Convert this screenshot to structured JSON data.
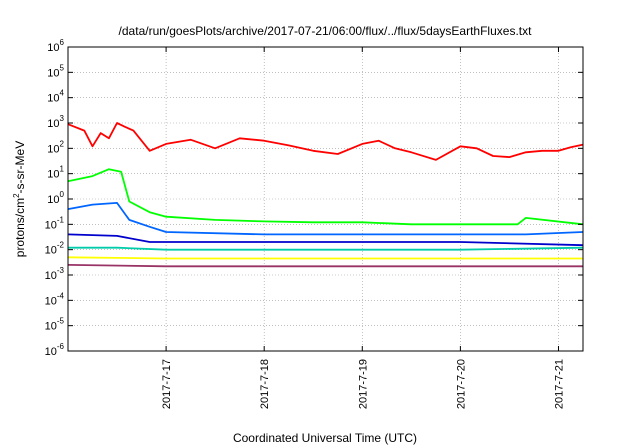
{
  "chart_data": {
    "type": "line",
    "title": "/data/run/goesPlots/archive/2017-07-21/06:00/flux/../flux/5daysEarthFluxes.txt",
    "xlabel": "Coordinated Universal Time (UTC)",
    "ylabel_parts": [
      "protons/cm",
      "2",
      "-s-sr-MeV"
    ],
    "yscale": "log",
    "ylim": [
      1e-06,
      1000000.0
    ],
    "y_ticks": [
      {
        "base": "10",
        "exp": "-6",
        "value": 1e-06
      },
      {
        "base": "10",
        "exp": "-5",
        "value": 1e-05
      },
      {
        "base": "10",
        "exp": "-4",
        "value": 0.0001
      },
      {
        "base": "10",
        "exp": "-3",
        "value": 0.001
      },
      {
        "base": "10",
        "exp": "-2",
        "value": 0.01
      },
      {
        "base": "10",
        "exp": "-1",
        "value": 0.1
      },
      {
        "base": "10",
        "exp": "0",
        "value": 1
      },
      {
        "base": "10",
        "exp": "1",
        "value": 10
      },
      {
        "base": "10",
        "exp": "2",
        "value": 100
      },
      {
        "base": "10",
        "exp": "3",
        "value": 1000
      },
      {
        "base": "10",
        "exp": "4",
        "value": 10000
      },
      {
        "base": "10",
        "exp": "5",
        "value": 100000
      },
      {
        "base": "10",
        "exp": "6",
        "value": 1000000
      }
    ],
    "xlim": [
      "2017-07-16 00:00",
      "2017-07-21 06:00"
    ],
    "x_ticks": [
      {
        "label": "2017-7-17",
        "value": "2017-07-17 00:00"
      },
      {
        "label": "2017-7-18",
        "value": "2017-07-18 00:00"
      },
      {
        "label": "2017-7-19",
        "value": "2017-07-19 00:00"
      },
      {
        "label": "2017-7-20",
        "value": "2017-07-20 00:00"
      },
      {
        "label": "2017-7-21",
        "value": "2017-07-21 00:00"
      }
    ],
    "grid": true,
    "series": [
      {
        "color": "#ff0000",
        "points": [
          [
            "2017-07-16 00:00",
            900
          ],
          [
            "2017-07-16 04:00",
            500
          ],
          [
            "2017-07-16 06:00",
            120
          ],
          [
            "2017-07-16 08:00",
            400
          ],
          [
            "2017-07-16 10:00",
            250
          ],
          [
            "2017-07-16 12:00",
            1000
          ],
          [
            "2017-07-16 14:00",
            700
          ],
          [
            "2017-07-16 16:00",
            500
          ],
          [
            "2017-07-16 20:00",
            80
          ],
          [
            "2017-07-17 00:00",
            150
          ],
          [
            "2017-07-17 06:00",
            220
          ],
          [
            "2017-07-17 12:00",
            100
          ],
          [
            "2017-07-17 18:00",
            250
          ],
          [
            "2017-07-18 00:00",
            200
          ],
          [
            "2017-07-18 06:00",
            130
          ],
          [
            "2017-07-18 12:00",
            80
          ],
          [
            "2017-07-18 18:00",
            60
          ],
          [
            "2017-07-19 00:00",
            150
          ],
          [
            "2017-07-19 04:00",
            200
          ],
          [
            "2017-07-19 08:00",
            100
          ],
          [
            "2017-07-19 12:00",
            70
          ],
          [
            "2017-07-19 18:00",
            35
          ],
          [
            "2017-07-20 00:00",
            120
          ],
          [
            "2017-07-20 04:00",
            100
          ],
          [
            "2017-07-20 08:00",
            50
          ],
          [
            "2017-07-20 12:00",
            45
          ],
          [
            "2017-07-20 16:00",
            70
          ],
          [
            "2017-07-20 20:00",
            80
          ],
          [
            "2017-07-21 00:00",
            80
          ],
          [
            "2017-07-21 03:00",
            110
          ],
          [
            "2017-07-21 06:00",
            140
          ]
        ]
      },
      {
        "color": "#00ff00",
        "points": [
          [
            "2017-07-16 00:00",
            5
          ],
          [
            "2017-07-16 06:00",
            8
          ],
          [
            "2017-07-16 10:00",
            15
          ],
          [
            "2017-07-16 13:00",
            12
          ],
          [
            "2017-07-16 15:00",
            0.8
          ],
          [
            "2017-07-16 20:00",
            0.3
          ],
          [
            "2017-07-17 00:00",
            0.2
          ],
          [
            "2017-07-17 12:00",
            0.15
          ],
          [
            "2017-07-18 00:00",
            0.13
          ],
          [
            "2017-07-18 12:00",
            0.12
          ],
          [
            "2017-07-19 00:00",
            0.12
          ],
          [
            "2017-07-19 12:00",
            0.1
          ],
          [
            "2017-07-20 00:00",
            0.1
          ],
          [
            "2017-07-20 14:00",
            0.1
          ],
          [
            "2017-07-20 16:00",
            0.18
          ],
          [
            "2017-07-21 06:00",
            0.1
          ]
        ]
      },
      {
        "color": "#0066ff",
        "points": [
          [
            "2017-07-16 00:00",
            0.4
          ],
          [
            "2017-07-16 06:00",
            0.6
          ],
          [
            "2017-07-16 12:00",
            0.7
          ],
          [
            "2017-07-16 15:00",
            0.15
          ],
          [
            "2017-07-16 20:00",
            0.08
          ],
          [
            "2017-07-17 00:00",
            0.05
          ],
          [
            "2017-07-18 00:00",
            0.04
          ],
          [
            "2017-07-19 00:00",
            0.04
          ],
          [
            "2017-07-20 00:00",
            0.04
          ],
          [
            "2017-07-20 16:00",
            0.04
          ],
          [
            "2017-07-21 06:00",
            0.05
          ]
        ]
      },
      {
        "color": "#00ccaa",
        "points": [
          [
            "2017-07-16 00:00",
            0.012
          ],
          [
            "2017-07-16 12:00",
            0.012
          ],
          [
            "2017-07-17 00:00",
            0.01
          ],
          [
            "2017-07-18 00:00",
            0.01
          ],
          [
            "2017-07-19 00:00",
            0.01
          ],
          [
            "2017-07-20 00:00",
            0.01
          ],
          [
            "2017-07-21 06:00",
            0.012
          ]
        ]
      },
      {
        "color": "#0000cc",
        "points": [
          [
            "2017-07-16 00:00",
            0.04
          ],
          [
            "2017-07-16 12:00",
            0.035
          ],
          [
            "2017-07-16 20:00",
            0.02
          ],
          [
            "2017-07-17 00:00",
            0.02
          ],
          [
            "2017-07-18 00:00",
            0.02
          ],
          [
            "2017-07-19 00:00",
            0.02
          ],
          [
            "2017-07-20 00:00",
            0.02
          ],
          [
            "2017-07-21 06:00",
            0.015
          ]
        ]
      },
      {
        "color": "#ffff00",
        "points": [
          [
            "2017-07-16 00:00",
            0.005
          ],
          [
            "2017-07-17 00:00",
            0.0045
          ],
          [
            "2017-07-18 00:00",
            0.0045
          ],
          [
            "2017-07-19 00:00",
            0.0045
          ],
          [
            "2017-07-20 00:00",
            0.0045
          ],
          [
            "2017-07-21 06:00",
            0.0045
          ]
        ]
      },
      {
        "color": "#993366",
        "points": [
          [
            "2017-07-16 00:00",
            0.0025
          ],
          [
            "2017-07-17 00:00",
            0.0022
          ],
          [
            "2017-07-18 00:00",
            0.0022
          ],
          [
            "2017-07-19 00:00",
            0.0022
          ],
          [
            "2017-07-20 00:00",
            0.0022
          ],
          [
            "2017-07-21 06:00",
            0.0022
          ]
        ]
      }
    ]
  }
}
